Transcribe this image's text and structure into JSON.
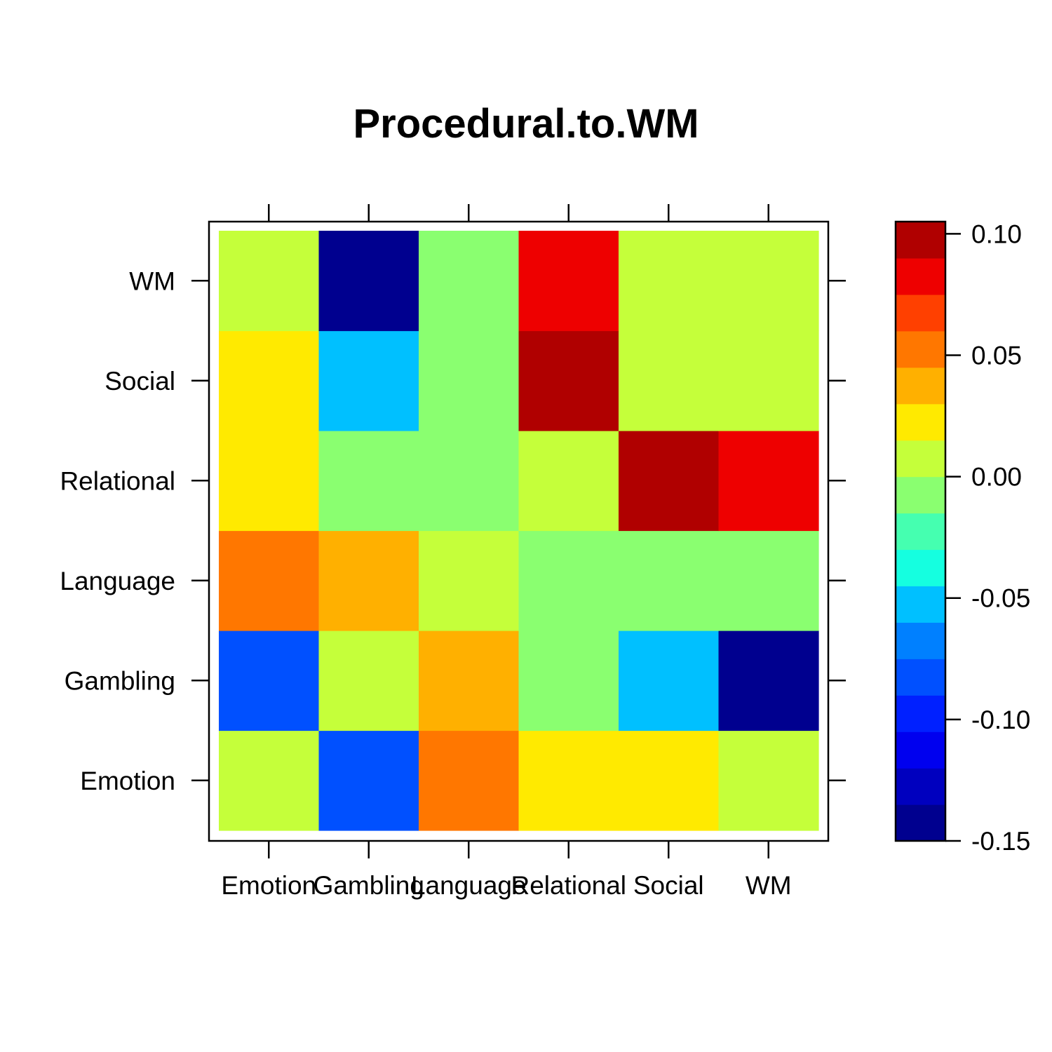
{
  "chart_data": {
    "type": "heatmap",
    "title": "Procedural.to.WM",
    "xlabel": "",
    "ylabel": "",
    "x_categories": [
      "Emotion",
      "Gambling",
      "Language",
      "Relational",
      "Social",
      "WM"
    ],
    "y_categories": [
      "Emotion",
      "Gambling",
      "Language",
      "Relational",
      "Social",
      "WM"
    ],
    "values": [
      [
        0.0,
        -0.085,
        0.045,
        0.015,
        0.015,
        0.0
      ],
      [
        -0.085,
        0.0,
        0.035,
        -0.015,
        -0.05,
        -0.145
      ],
      [
        0.045,
        0.035,
        0.0,
        -0.015,
        -0.015,
        -0.015
      ],
      [
        0.015,
        -0.015,
        -0.015,
        0.0,
        0.095,
        0.085
      ],
      [
        0.015,
        -0.05,
        -0.015,
        0.095,
        0.0,
        0.0
      ],
      [
        0.0,
        -0.145,
        -0.015,
        0.085,
        0.0,
        0.0
      ]
    ],
    "colorbar": {
      "breaks": [
        -0.15,
        -0.135,
        -0.12,
        -0.105,
        -0.09,
        -0.075,
        -0.06,
        -0.045,
        -0.03,
        -0.015,
        0.0,
        0.015,
        0.03,
        0.045,
        0.06,
        0.075,
        0.09,
        0.105
      ],
      "colors": [
        "#00008F",
        "#0000BF",
        "#0000EF",
        "#0020FF",
        "#0050FF",
        "#0080FF",
        "#00C0FF",
        "#15FFE0",
        "#45FFB0",
        "#8AFF70",
        "#C5FF3A",
        "#FFEA00",
        "#FFB000",
        "#FF7700",
        "#FF4000",
        "#EE0000",
        "#B00000"
      ],
      "tick_values": [
        -0.15,
        -0.1,
        -0.05,
        0.0,
        0.05,
        0.1
      ],
      "tick_labels": [
        "-0.15",
        "-0.10",
        "-0.05",
        "0.00",
        "0.05",
        "0.10"
      ]
    }
  }
}
